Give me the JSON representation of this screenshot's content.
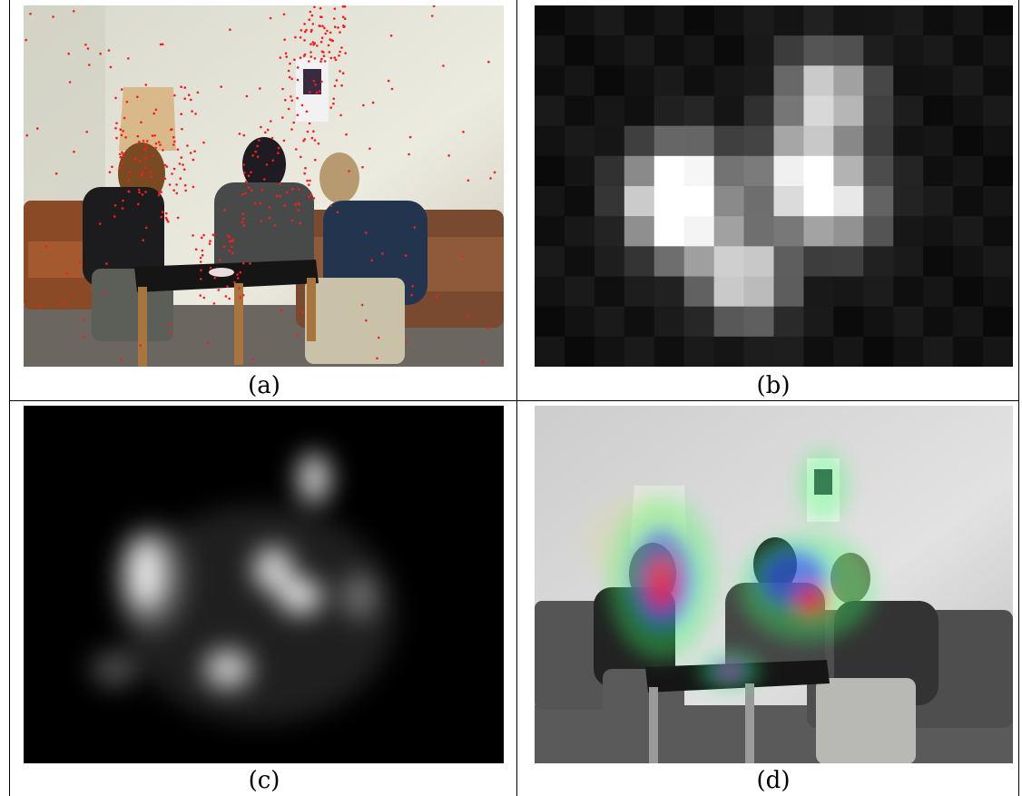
{
  "figure": {
    "panels": [
      {
        "caption": "(a)",
        "content": "photo-with-fixation-points"
      },
      {
        "caption": "(b)",
        "content": "coarse-grid-saliency"
      },
      {
        "caption": "(c)",
        "content": "smoothed-saliency-map"
      },
      {
        "caption": "(d)",
        "content": "heatmap-overlay"
      }
    ],
    "colors": {
      "fixation": "#ff1a1a",
      "wall": "#e6e3d6",
      "sofa": "#8a4a2a",
      "heat_high": "#ff2040",
      "heat_mid": "#3040ff",
      "heat_low": "#30ff60"
    }
  }
}
